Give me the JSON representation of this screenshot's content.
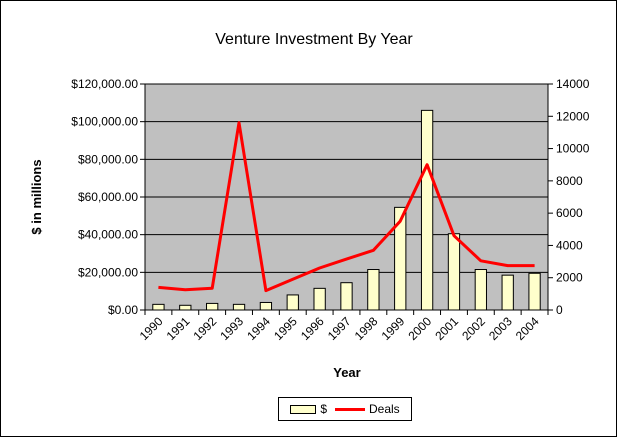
{
  "colors": {
    "plot_background": "#c0c0c0",
    "bar_fill": "#ffffcc",
    "bar_stroke": "#000000",
    "line_color": "#ff0000",
    "chart_background": "#ffffff"
  },
  "chart_data": {
    "type": "bar",
    "title": "Venture Investment By Year",
    "xlabel": "Year",
    "ylabel": "$ in millions",
    "categories": [
      "1990",
      "1991",
      "1992",
      "1993",
      "1994",
      "1995",
      "1996",
      "1997",
      "1998",
      "1999",
      "2000",
      "2001",
      "2002",
      "2003",
      "2004"
    ],
    "y_ticks": [
      "$0.00",
      "$20,000.00",
      "$40,000.00",
      "$60,000.00",
      "$80,000.00",
      "$100,000.00",
      "$120,000.00"
    ],
    "y2_ticks": [
      "0",
      "2000",
      "4000",
      "6000",
      "8000",
      "10000",
      "12000",
      "14000"
    ],
    "ylim": [
      0,
      120000
    ],
    "y2lim": [
      0,
      14000
    ],
    "grid": true,
    "legend_position": "bottom",
    "series": [
      {
        "name": "$",
        "type": "bar",
        "axis": "left",
        "values": [
          3000,
          2500,
          3500,
          3000,
          4000,
          8000,
          11500,
          14500,
          21500,
          54500,
          106000,
          40500,
          21500,
          18500,
          19500
        ]
      },
      {
        "name": "Deals",
        "type": "line",
        "axis": "right",
        "values": [
          1400,
          1250,
          1350,
          11600,
          1200,
          1900,
          2600,
          3150,
          3700,
          5500,
          9000,
          4600,
          3050,
          2750,
          2750
        ]
      }
    ]
  }
}
